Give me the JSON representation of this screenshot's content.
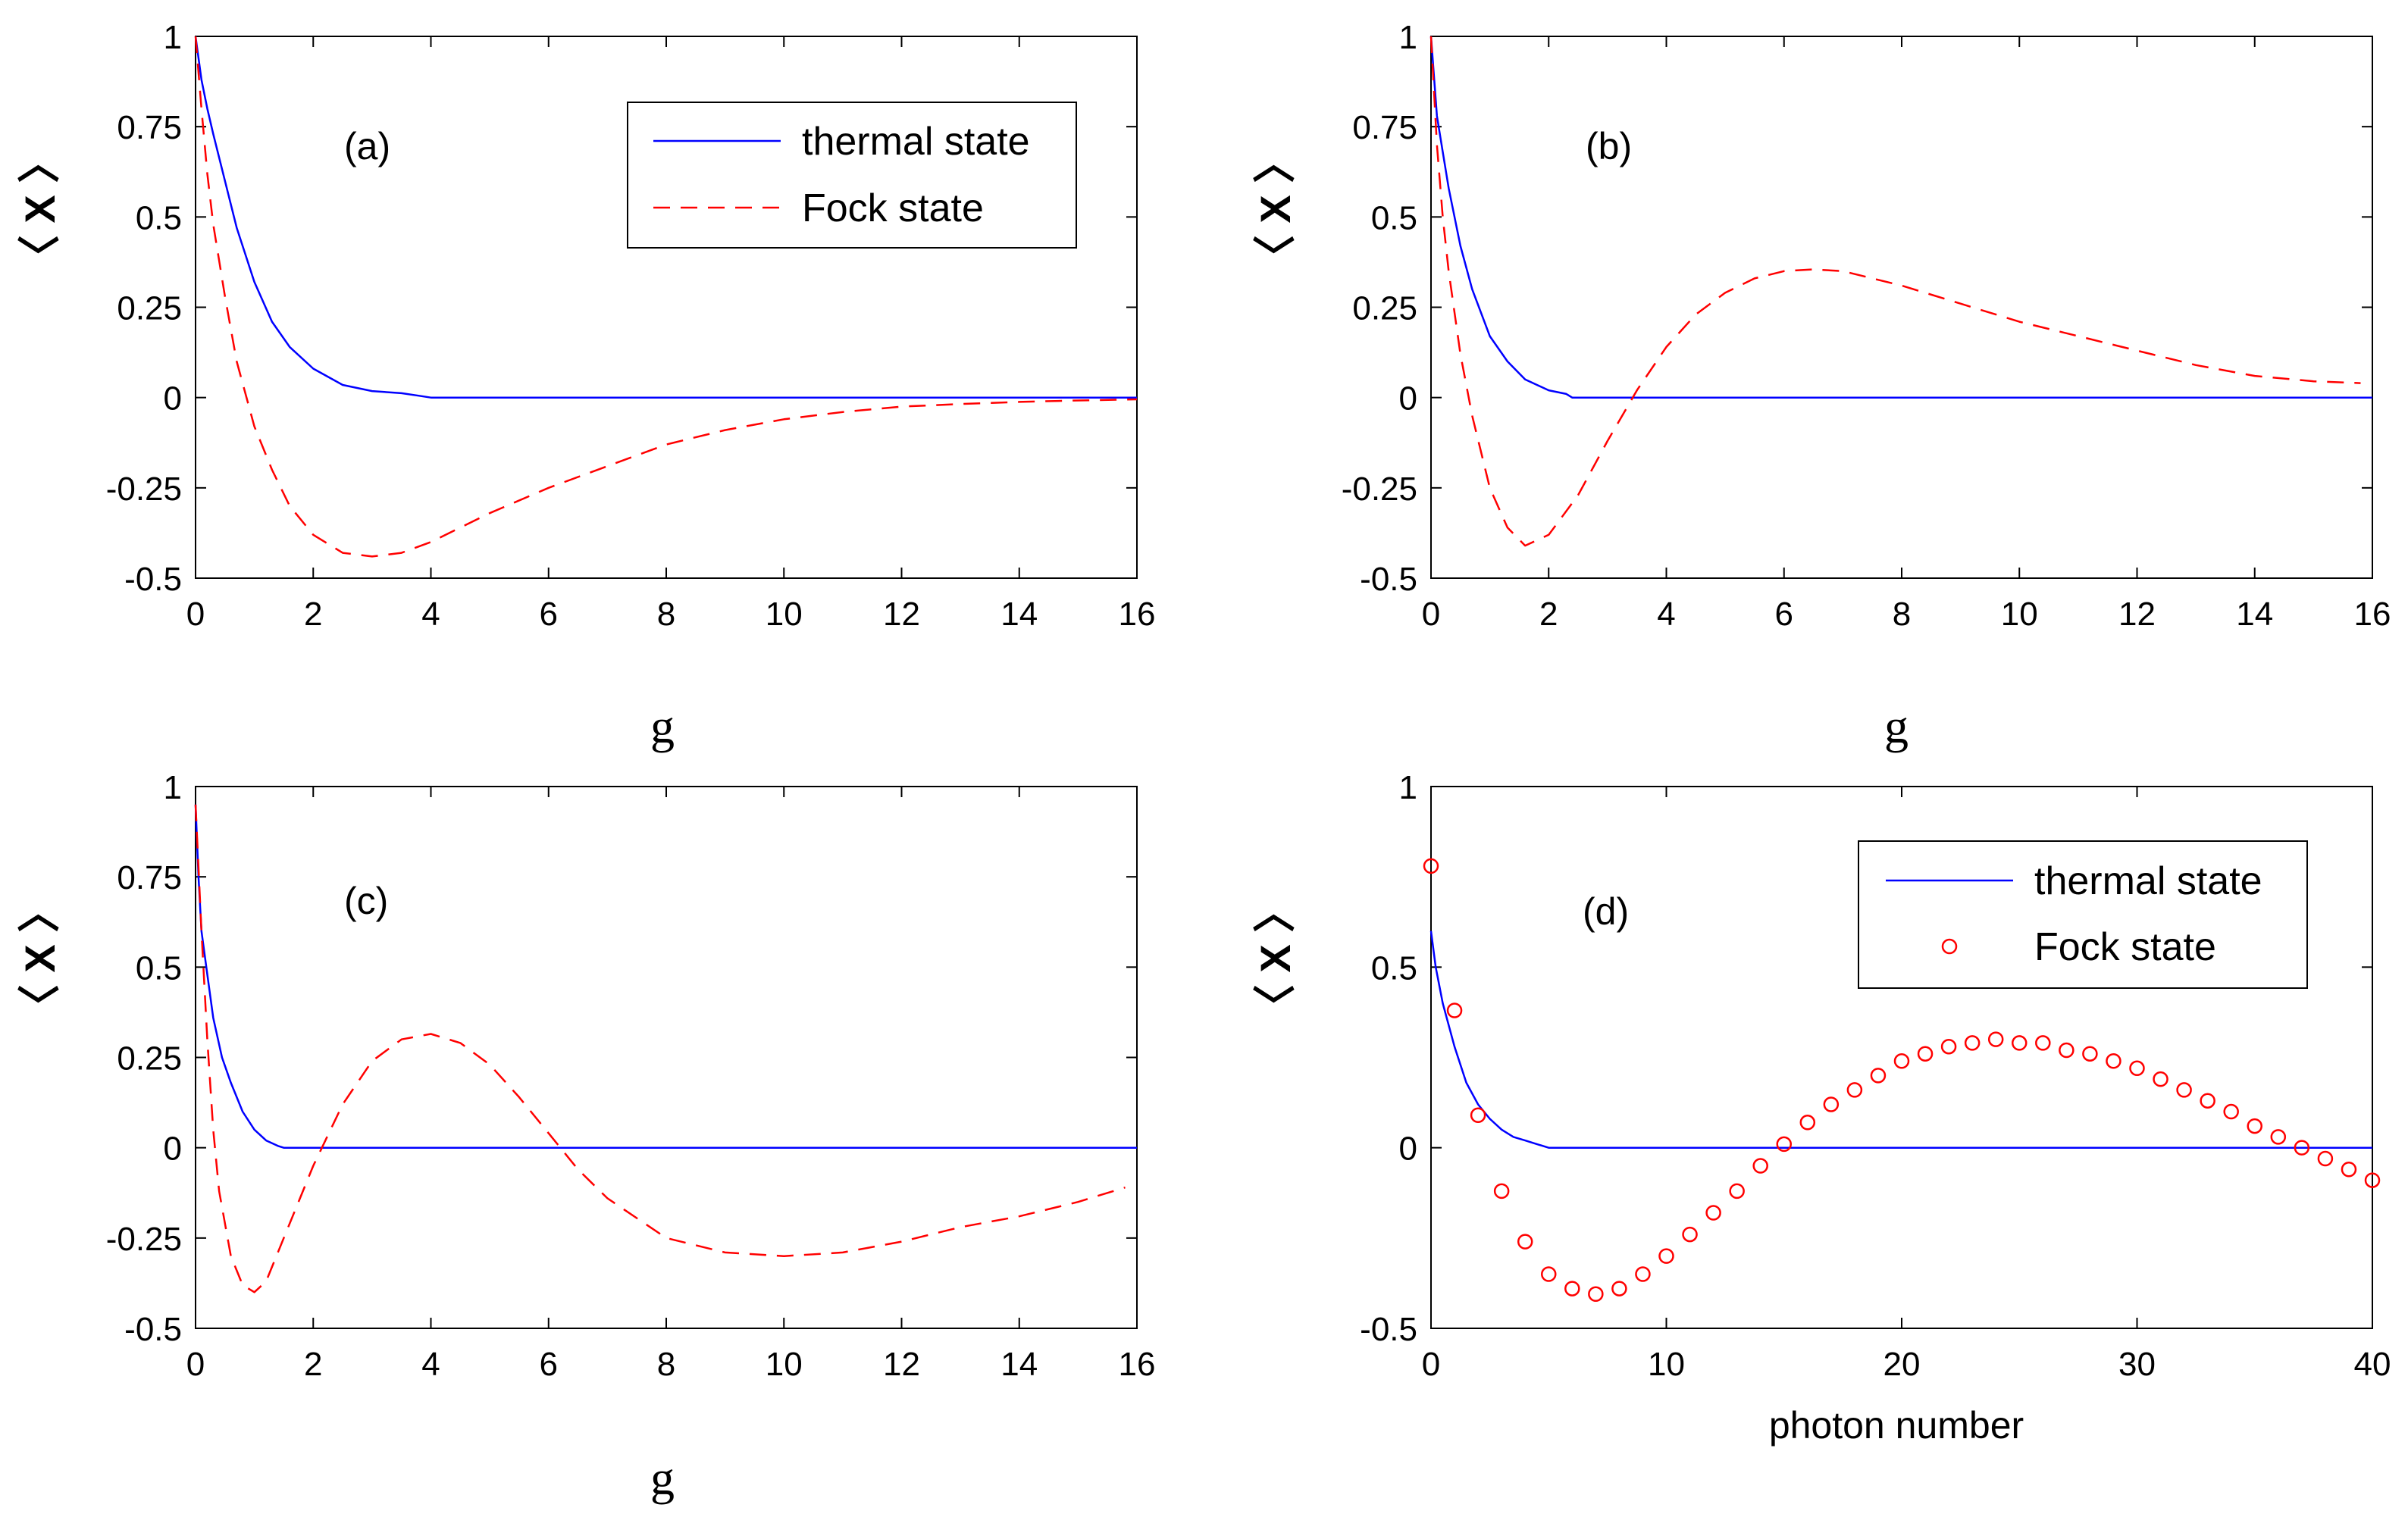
{
  "colors": {
    "thermal": "#0000ff",
    "fock": "#ff0000",
    "axes": "#000000",
    "background": "#ffffff"
  },
  "chart_data": [
    {
      "id": "a",
      "type": "line",
      "panel_label": "(a)",
      "xlabel": "g",
      "ylabel": "〈 X 〉",
      "xlim": [
        0,
        16
      ],
      "ylim": [
        -0.5,
        1
      ],
      "xticks": [
        0,
        2,
        4,
        6,
        8,
        10,
        12,
        14,
        16
      ],
      "xtick_labels": [
        "0",
        "2",
        "4",
        "6",
        "8",
        "10",
        "12",
        "14",
        "16"
      ],
      "yticks": [
        -0.5,
        -0.25,
        0,
        0.25,
        0.5,
        0.75,
        1
      ],
      "ytick_labels": [
        "-0.5",
        "-0.25",
        "0",
        "0.25",
        "0.5",
        "0.75",
        "1"
      ],
      "legend": {
        "position": "top-right",
        "entries": [
          "thermal state",
          "Fock state"
        ]
      },
      "series": [
        {
          "name": "thermal state",
          "style": "solid",
          "color": "#0000ff",
          "x": [
            0,
            0.1,
            0.2,
            0.3,
            0.5,
            0.7,
            1,
            1.3,
            1.6,
            2,
            2.5,
            3,
            3.5,
            3.8,
            4,
            6,
            8,
            10,
            12,
            14,
            16
          ],
          "y": [
            1,
            0.88,
            0.8,
            0.73,
            0.6,
            0.47,
            0.32,
            0.21,
            0.14,
            0.08,
            0.035,
            0.018,
            0.012,
            0.005,
            0,
            0,
            0,
            0,
            0,
            0,
            0
          ]
        },
        {
          "name": "Fock state",
          "style": "dashed",
          "color": "#ff0000",
          "x": [
            0,
            0.1,
            0.2,
            0.3,
            0.5,
            0.7,
            1,
            1.3,
            1.6,
            2,
            2.5,
            3,
            3.5,
            4,
            5,
            6,
            7,
            8,
            9,
            10,
            11,
            12,
            13,
            14,
            15,
            16
          ],
          "y": [
            1,
            0.8,
            0.62,
            0.48,
            0.28,
            0.1,
            -0.08,
            -0.2,
            -0.3,
            -0.38,
            -0.43,
            -0.44,
            -0.43,
            -0.4,
            -0.32,
            -0.25,
            -0.19,
            -0.13,
            -0.09,
            -0.06,
            -0.04,
            -0.025,
            -0.018,
            -0.012,
            -0.008,
            -0.005
          ]
        }
      ]
    },
    {
      "id": "b",
      "type": "line",
      "panel_label": "(b)",
      "xlabel": "g",
      "ylabel": "〈 X 〉",
      "xlim": [
        0,
        16
      ],
      "ylim": [
        -0.5,
        1
      ],
      "xticks": [
        0,
        2,
        4,
        6,
        8,
        10,
        12,
        14,
        16
      ],
      "xtick_labels": [
        "0",
        "2",
        "4",
        "6",
        "8",
        "10",
        "12",
        "14",
        "16"
      ],
      "yticks": [
        -0.5,
        -0.25,
        0,
        0.25,
        0.5,
        0.75,
        1
      ],
      "ytick_labels": [
        "-0.5",
        "-0.25",
        "0",
        "0.25",
        "0.5",
        "0.75",
        "1"
      ],
      "series": [
        {
          "name": "thermal state",
          "style": "solid",
          "color": "#0000ff",
          "x": [
            0,
            0.1,
            0.2,
            0.3,
            0.5,
            0.7,
            1,
            1.3,
            1.6,
            2,
            2.3,
            2.4,
            4,
            6,
            8,
            10,
            12,
            14,
            16
          ],
          "y": [
            1,
            0.78,
            0.68,
            0.58,
            0.42,
            0.3,
            0.17,
            0.1,
            0.05,
            0.02,
            0.01,
            0,
            0,
            0,
            0,
            0,
            0,
            0,
            0
          ]
        },
        {
          "name": "Fock state",
          "style": "dashed",
          "color": "#ff0000",
          "x": [
            0,
            0.1,
            0.2,
            0.3,
            0.5,
            0.7,
            1,
            1.3,
            1.6,
            2,
            2.5,
            3,
            3.5,
            4,
            4.5,
            5,
            5.5,
            6,
            6.5,
            7,
            8,
            9,
            10,
            11,
            12,
            13,
            14,
            15,
            15.8
          ],
          "y": [
            1,
            0.7,
            0.5,
            0.35,
            0.12,
            -0.05,
            -0.25,
            -0.36,
            -0.41,
            -0.38,
            -0.27,
            -0.12,
            0.02,
            0.14,
            0.23,
            0.29,
            0.33,
            0.35,
            0.355,
            0.35,
            0.31,
            0.26,
            0.21,
            0.17,
            0.13,
            0.09,
            0.06,
            0.045,
            0.04
          ]
        }
      ]
    },
    {
      "id": "c",
      "type": "line",
      "panel_label": "(c)",
      "xlabel": "g",
      "ylabel": "〈 X 〉",
      "xlim": [
        0,
        16
      ],
      "ylim": [
        -0.5,
        1
      ],
      "xticks": [
        0,
        2,
        4,
        6,
        8,
        10,
        12,
        14,
        16
      ],
      "xtick_labels": [
        "0",
        "2",
        "4",
        "6",
        "8",
        "10",
        "12",
        "14",
        "16"
      ],
      "yticks": [
        -0.5,
        -0.25,
        0,
        0.25,
        0.5,
        0.75,
        1
      ],
      "ytick_labels": [
        "-0.5",
        "-0.25",
        "0",
        "0.25",
        "0.5",
        "0.75",
        "1"
      ],
      "series": [
        {
          "name": "thermal state",
          "style": "solid",
          "color": "#0000ff",
          "x": [
            0,
            0.05,
            0.1,
            0.2,
            0.3,
            0.45,
            0.6,
            0.8,
            1,
            1.2,
            1.4,
            1.5,
            4,
            6,
            8,
            10,
            12,
            14,
            16
          ],
          "y": [
            0.95,
            0.75,
            0.6,
            0.48,
            0.36,
            0.25,
            0.18,
            0.1,
            0.05,
            0.02,
            0.005,
            0,
            0,
            0,
            0,
            0,
            0,
            0,
            0
          ]
        },
        {
          "name": "Fock state",
          "style": "dashed",
          "color": "#ff0000",
          "x": [
            0,
            0.1,
            0.2,
            0.3,
            0.4,
            0.6,
            0.8,
            1,
            1.2,
            1.5,
            2,
            2.5,
            3,
            3.5,
            4,
            4.5,
            5,
            5.5,
            6,
            6.5,
            7,
            8,
            9,
            10,
            11,
            12,
            13,
            14,
            15,
            15.8
          ],
          "y": [
            0.95,
            0.6,
            0.3,
            0.05,
            -0.12,
            -0.3,
            -0.38,
            -0.4,
            -0.37,
            -0.25,
            -0.05,
            0.12,
            0.24,
            0.3,
            0.315,
            0.29,
            0.23,
            0.14,
            0.04,
            -0.06,
            -0.14,
            -0.25,
            -0.29,
            -0.3,
            -0.29,
            -0.26,
            -0.22,
            -0.19,
            -0.15,
            -0.11
          ]
        }
      ]
    },
    {
      "id": "d",
      "type": "scatter",
      "panel_label": "(d)",
      "xlabel": "photon number",
      "ylabel": "〈 X 〉",
      "xlim": [
        0,
        40
      ],
      "ylim": [
        -0.5,
        1
      ],
      "xticks": [
        0,
        10,
        20,
        30,
        40
      ],
      "xtick_labels": [
        "0",
        "10",
        "20",
        "30",
        "40"
      ],
      "yticks": [
        -0.5,
        0,
        0.5,
        1
      ],
      "ytick_labels": [
        "-0.5",
        "0",
        "0.5",
        "1"
      ],
      "legend": {
        "position": "top-right",
        "entries": [
          "thermal state",
          "Fock state"
        ]
      },
      "series": [
        {
          "name": "thermal state",
          "style": "solid",
          "color": "#0000ff",
          "x": [
            0,
            0.2,
            0.5,
            1,
            1.5,
            2,
            2.5,
            3,
            3.5,
            4,
            4.5,
            5,
            10,
            20,
            30,
            40
          ],
          "y": [
            0.6,
            0.5,
            0.4,
            0.28,
            0.18,
            0.12,
            0.08,
            0.05,
            0.03,
            0.02,
            0.01,
            0,
            0,
            0,
            0,
            0
          ]
        },
        {
          "name": "Fock state",
          "style": "markers",
          "color": "#ff0000",
          "x": [
            0,
            1,
            2,
            3,
            4,
            5,
            6,
            7,
            8,
            9,
            10,
            11,
            12,
            13,
            14,
            15,
            16,
            17,
            18,
            19,
            20,
            21,
            22,
            23,
            24,
            25,
            26,
            27,
            28,
            29,
            30,
            31,
            32,
            33,
            34,
            35,
            36,
            37,
            38,
            39,
            40
          ],
          "y": [
            0.78,
            0.38,
            0.09,
            -0.12,
            -0.26,
            -0.35,
            -0.39,
            -0.405,
            -0.39,
            -0.35,
            -0.3,
            -0.24,
            -0.18,
            -0.12,
            -0.05,
            0.01,
            0.07,
            0.12,
            0.16,
            0.2,
            0.24,
            0.26,
            0.28,
            0.29,
            0.3,
            0.29,
            0.29,
            0.27,
            0.26,
            0.24,
            0.22,
            0.19,
            0.16,
            0.13,
            0.1,
            0.06,
            0.03,
            0.0,
            -0.03,
            -0.06,
            -0.09
          ]
        }
      ]
    }
  ]
}
